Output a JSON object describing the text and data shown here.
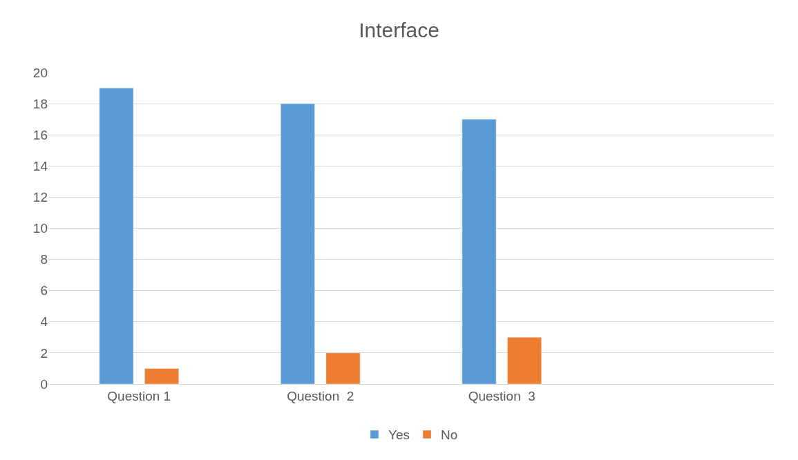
{
  "chart_data": {
    "type": "bar",
    "title": "Interface",
    "categories": [
      "Question 1",
      "Question  2",
      "Question  3",
      null
    ],
    "series": [
      {
        "name": "Yes",
        "color": "#5b9bd5",
        "values": [
          19,
          18,
          17,
          null
        ]
      },
      {
        "name": "No",
        "color": "#ed7d31",
        "values": [
          1,
          2,
          3,
          null
        ]
      }
    ],
    "ylim": [
      0,
      20
    ],
    "yticks": [
      0,
      2,
      4,
      6,
      8,
      10,
      12,
      14,
      16,
      18,
      20
    ],
    "grid": "y",
    "legend": "bottom"
  }
}
